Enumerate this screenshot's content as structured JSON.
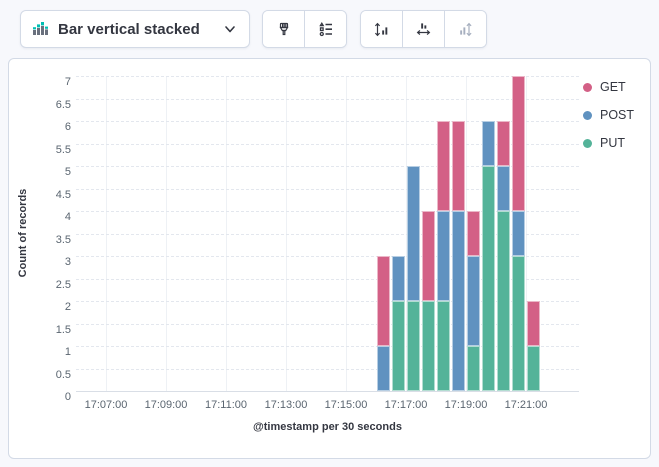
{
  "toolbar": {
    "chart_type": {
      "label": "Bar vertical stacked"
    }
  },
  "colors": {
    "get": "#D36086",
    "post": "#6092C0",
    "put": "#54B399",
    "panel_border": "#D3DAE6",
    "icon_green": "#00BFB3",
    "icon_gray": "#69707D"
  },
  "chart_data": {
    "type": "bar",
    "stacked": true,
    "orientation": "vertical",
    "xlabel": "@timestamp per 30 seconds",
    "ylabel": "Count of records",
    "ylim": [
      0,
      7
    ],
    "y_tick_step": 0.5,
    "grid": true,
    "legend_position": "right",
    "x_domain": [
      "17:06:00",
      "17:22:46"
    ],
    "bucket_seconds": 30,
    "x_ticks": [
      "17:07:00",
      "17:09:00",
      "17:11:00",
      "17:13:00",
      "17:15:00",
      "17:17:00",
      "17:19:00",
      "17:21:00"
    ],
    "categories": [
      "17:16:00",
      "17:16:30",
      "17:17:00",
      "17:17:30",
      "17:18:00",
      "17:18:30",
      "17:19:00",
      "17:19:30",
      "17:20:00",
      "17:20:30",
      "17:21:00"
    ],
    "series": [
      {
        "name": "GET",
        "color": "#D36086",
        "values": [
          2,
          0,
          0,
          2,
          2,
          2,
          1,
          0,
          1,
          3,
          1
        ]
      },
      {
        "name": "POST",
        "color": "#6092C0",
        "values": [
          1,
          1,
          3,
          0,
          2,
          4,
          2,
          1,
          1,
          1,
          0
        ]
      },
      {
        "name": "PUT",
        "color": "#54B399",
        "values": [
          0,
          2,
          2,
          2,
          2,
          0,
          1,
          5,
          4,
          3,
          1
        ]
      }
    ],
    "totals": [
      3,
      3,
      5,
      4,
      6,
      6,
      4,
      6,
      6,
      7,
      2
    ]
  },
  "legend": {
    "items": [
      {
        "label": "GET",
        "color": "#D36086"
      },
      {
        "label": "POST",
        "color": "#6092C0"
      },
      {
        "label": "PUT",
        "color": "#54B399"
      }
    ]
  }
}
